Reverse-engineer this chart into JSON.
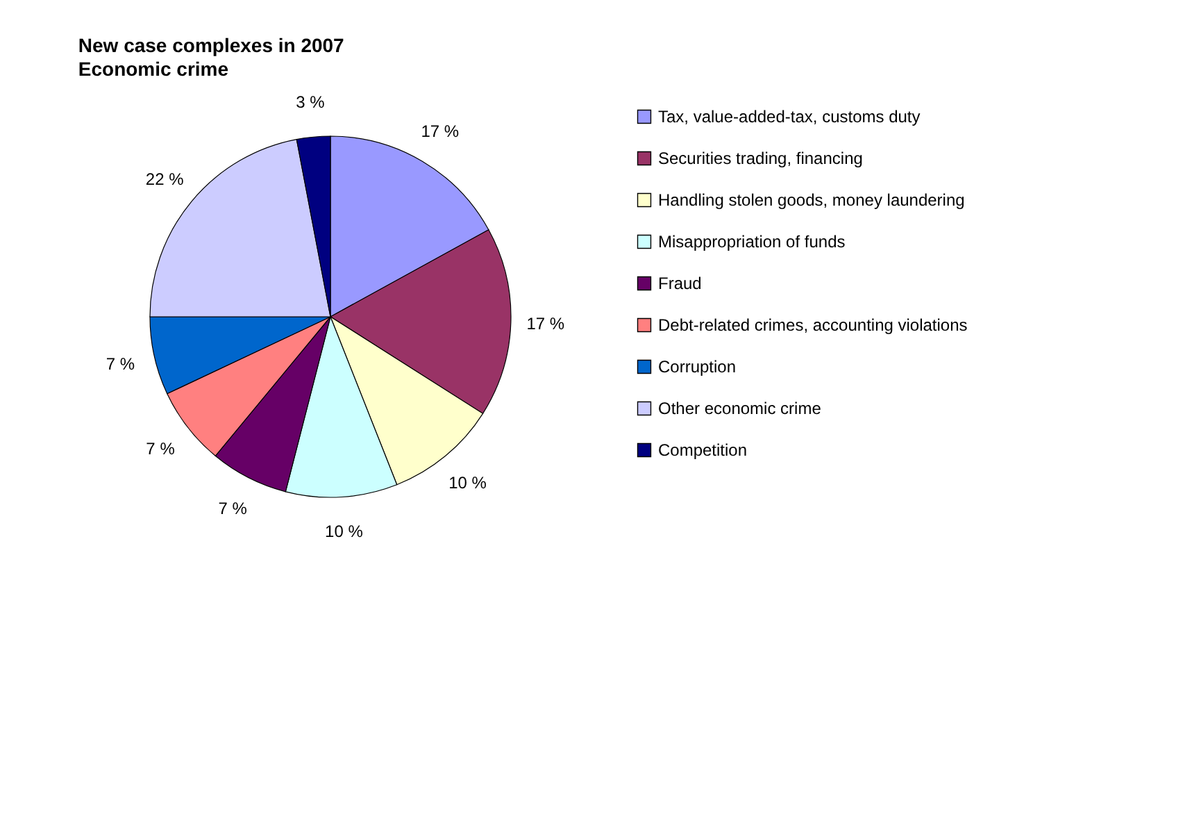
{
  "chart_data": {
    "type": "pie",
    "title": "New case complexes in 2007",
    "subtitle": "Economic crime",
    "categories": [
      "Tax, value-added-tax, customs duty",
      "Securities trading, financing",
      "Handling stolen goods, money laundering",
      "Misappropriation of funds",
      "Fraud",
      "Debt-related crimes, accounting violations",
      "Corruption",
      "Other economic crime",
      "Competition"
    ],
    "values": [
      17,
      17,
      10,
      10,
      7,
      7,
      7,
      22,
      3
    ],
    "value_labels": [
      "17 %",
      "17 %",
      "10 %",
      "10 %",
      "7 %",
      "7 %",
      "7 %",
      "22 %",
      "3 %"
    ],
    "colors": [
      "#9999ff",
      "#993366",
      "#ffffcc",
      "#ccffff",
      "#660066",
      "#ff8080",
      "#0066cc",
      "#ccccff",
      "#000080"
    ],
    "legend": "right"
  }
}
